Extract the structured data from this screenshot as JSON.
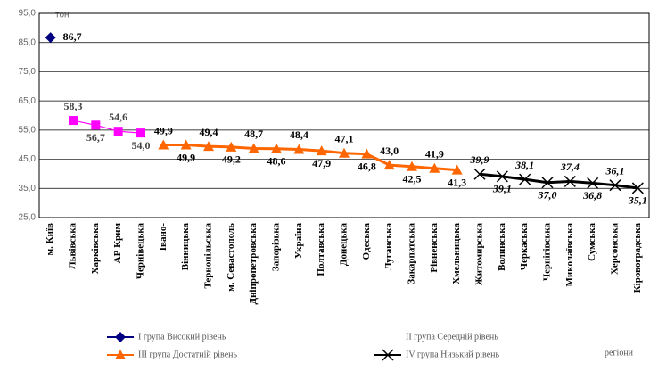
{
  "chart_data": {
    "type": "line",
    "y_label": "тон",
    "x_label": "регіони",
    "categories": [
      "м. Київ",
      "Львівська",
      "Харківська",
      "АР Крим",
      "Чернівецька",
      "Івано-",
      "Вінницька",
      "Тернопільська",
      "м. Севастополь",
      "Дніпропетровська",
      "Запорізька",
      "Україна",
      "Полтавська",
      "Донецька",
      "Одеська",
      "Луганська",
      "Закарпатська",
      "Рівненська",
      "Хмельницька",
      "Житомирська",
      "Волинська",
      "Черкаська",
      "Чернігівська",
      "Миколаївська",
      "Сумська",
      "Херсонська",
      "Кіровоградська"
    ],
    "series": [
      {
        "name": "І група Високий рівень",
        "color": "#000080",
        "marker": "diamond",
        "values": [
          86.7,
          null,
          null,
          null,
          null,
          null,
          null,
          null,
          null,
          null,
          null,
          null,
          null,
          null,
          null,
          null,
          null,
          null,
          null,
          null,
          null,
          null,
          null,
          null,
          null,
          null,
          null
        ],
        "value_labels": [
          "86,7",
          null,
          null,
          null,
          null,
          null,
          null,
          null,
          null,
          null,
          null,
          null,
          null,
          null,
          null,
          null,
          null,
          null,
          null,
          null,
          null,
          null,
          null,
          null,
          null,
          null,
          null
        ]
      },
      {
        "name": "ІІ група Середній рівень",
        "color": "#ff00ff",
        "marker": "square",
        "values": [
          null,
          58.3,
          56.7,
          54.6,
          54.0,
          null,
          null,
          null,
          null,
          null,
          null,
          null,
          null,
          null,
          null,
          null,
          null,
          null,
          null,
          null,
          null,
          null,
          null,
          null,
          null,
          null,
          null
        ],
        "value_labels": [
          null,
          "58,3",
          "56,7",
          "54,6",
          "54,0",
          null,
          null,
          null,
          null,
          null,
          null,
          null,
          null,
          null,
          null,
          null,
          null,
          null,
          null,
          null,
          null,
          null,
          null,
          null,
          null,
          null,
          null
        ]
      },
      {
        "name": "ІІІ група Достатній рівень",
        "color": "#ff6600",
        "marker": "triangle",
        "values": [
          null,
          null,
          null,
          null,
          null,
          49.9,
          49.9,
          49.4,
          49.2,
          48.7,
          48.6,
          48.4,
          47.9,
          47.1,
          46.8,
          43.0,
          42.5,
          41.9,
          41.3,
          null,
          null,
          null,
          null,
          null,
          null,
          null,
          null
        ],
        "value_labels": [
          null,
          null,
          null,
          null,
          null,
          "49,9",
          "49,9",
          "49,4",
          "49,2",
          "48,7",
          "48,6",
          "48,4",
          "47,9",
          "47,1",
          "46,8",
          "43,0",
          "42,5",
          "41,9",
          "41,3",
          null,
          null,
          null,
          null,
          null,
          null,
          null,
          null
        ]
      },
      {
        "name": "ІV група Низький рівень",
        "color": "#000000",
        "marker": "x",
        "values": [
          null,
          null,
          null,
          null,
          null,
          null,
          null,
          null,
          null,
          null,
          null,
          null,
          null,
          null,
          null,
          null,
          null,
          null,
          null,
          39.9,
          39.1,
          38.1,
          37.0,
          37.4,
          36.8,
          36.1,
          35.1
        ],
        "value_labels": [
          null,
          null,
          null,
          null,
          null,
          null,
          null,
          null,
          null,
          null,
          null,
          null,
          null,
          null,
          null,
          null,
          null,
          null,
          null,
          "39,9",
          "39,1",
          "38,1",
          "37,0",
          "37,4",
          "36,8",
          "36,1",
          "35,1"
        ]
      }
    ],
    "ylim": [
      25,
      95
    ],
    "yticks": [
      {
        "value": 25,
        "label": "25,0"
      },
      {
        "value": 35,
        "label": "35,0"
      },
      {
        "value": 45,
        "label": "45,0"
      },
      {
        "value": 55,
        "label": "55,0"
      },
      {
        "value": 65,
        "label": "65,0"
      },
      {
        "value": 75,
        "label": "75,0"
      },
      {
        "value": 85,
        "label": "85,0"
      },
      {
        "value": 95,
        "label": "95,0"
      }
    ],
    "grid": true
  }
}
